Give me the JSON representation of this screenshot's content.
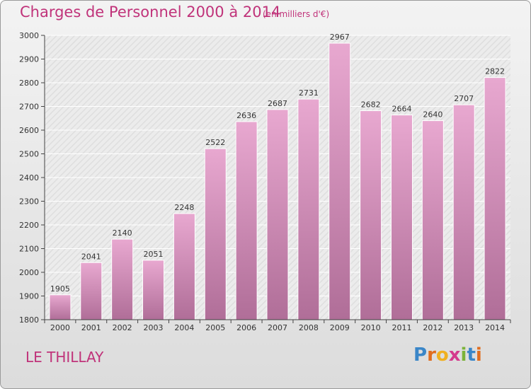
{
  "header": {
    "title": "Charges de Personnel 2000 à 2014",
    "unit": "(en milliers d'€)"
  },
  "footer": {
    "commune": "LE THILLAY",
    "logo_letters": [
      "P",
      "r",
      "o",
      "x",
      "i",
      "t",
      "i"
    ],
    "logo_colors": [
      "#3a86c8",
      "#e06d1f",
      "#f0b020",
      "#d43a8c",
      "#7bb33a",
      "#3a86c8",
      "#e06d1f"
    ]
  },
  "colors": {
    "bar_top": "#e8a8d0",
    "bar_bottom": "#b06e98",
    "text": "#333333",
    "accent": "#c0337a"
  },
  "chart_data": {
    "type": "bar",
    "title": "Charges de Personnel 2000 à 2014",
    "categories": [
      "2000",
      "2001",
      "2002",
      "2003",
      "2004",
      "2005",
      "2006",
      "2007",
      "2008",
      "2009",
      "2010",
      "2011",
      "2012",
      "2013",
      "2014"
    ],
    "values": [
      1905,
      2041,
      2140,
      2051,
      2248,
      2522,
      2636,
      2687,
      2731,
      2967,
      2682,
      2664,
      2640,
      2707,
      2822
    ],
    "ylim": [
      1800,
      3000
    ],
    "yticks": [
      1800,
      1900,
      2000,
      2100,
      2200,
      2300,
      2400,
      2500,
      2600,
      2700,
      2800,
      2900,
      3000
    ],
    "grid": true,
    "xlabel": "",
    "ylabel": ""
  }
}
